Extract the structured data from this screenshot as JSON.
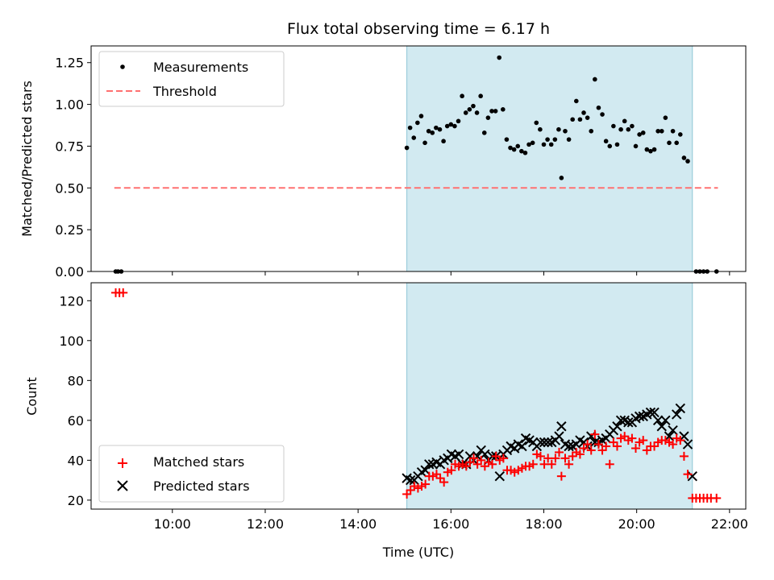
{
  "chart_data": {
    "title": "Flux total observing time = 6.17 h",
    "xlabel": "Time (UTC)",
    "x_ticks": [
      "10:00",
      "12:00",
      "14:00",
      "16:00",
      "18:00",
      "20:00",
      "22:00"
    ],
    "x_range_hours": [
      8.25,
      22.35
    ],
    "highlight_hours": [
      15.05,
      21.2
    ],
    "colors": {
      "highlight": "#add8e6",
      "measurements": "#000000",
      "threshold": "#ff7070",
      "matched": "#ff0000",
      "predicted": "#000000"
    },
    "panels": [
      {
        "type": "scatter",
        "ylabel": "Matched/Predicted stars",
        "ylim": [
          0,
          1.35
        ],
        "y_ticks": [
          "0.00",
          "0.25",
          "0.50",
          "0.75",
          "1.00",
          "1.25"
        ],
        "legend": [
          {
            "label": "Measurements"
          },
          {
            "label": "Threshold"
          }
        ],
        "threshold": {
          "y": 0.5,
          "x_start": 8.75,
          "x_end": 21.75
        },
        "measurements": [
          [
            8.78,
            0
          ],
          [
            8.83,
            0
          ],
          [
            8.9,
            0
          ],
          [
            15.05,
            0.74
          ],
          [
            15.12,
            0.86
          ],
          [
            15.2,
            0.8
          ],
          [
            15.28,
            0.89
          ],
          [
            15.36,
            0.93
          ],
          [
            15.44,
            0.77
          ],
          [
            15.52,
            0.84
          ],
          [
            15.6,
            0.83
          ],
          [
            15.68,
            0.86
          ],
          [
            15.76,
            0.85
          ],
          [
            15.84,
            0.78
          ],
          [
            15.92,
            0.87
          ],
          [
            16.0,
            0.88
          ],
          [
            16.08,
            0.87
          ],
          [
            16.16,
            0.9
          ],
          [
            16.24,
            1.05
          ],
          [
            16.32,
            0.95
          ],
          [
            16.4,
            0.97
          ],
          [
            16.48,
            0.99
          ],
          [
            16.56,
            0.95
          ],
          [
            16.64,
            1.05
          ],
          [
            16.72,
            0.83
          ],
          [
            16.8,
            0.92
          ],
          [
            16.88,
            0.96
          ],
          [
            16.96,
            0.96
          ],
          [
            17.04,
            1.28
          ],
          [
            17.12,
            0.97
          ],
          [
            17.2,
            0.79
          ],
          [
            17.28,
            0.74
          ],
          [
            17.36,
            0.73
          ],
          [
            17.44,
            0.75
          ],
          [
            17.52,
            0.72
          ],
          [
            17.6,
            0.71
          ],
          [
            17.68,
            0.76
          ],
          [
            17.76,
            0.77
          ],
          [
            17.84,
            0.89
          ],
          [
            17.92,
            0.85
          ],
          [
            18.0,
            0.76
          ],
          [
            18.08,
            0.79
          ],
          [
            18.16,
            0.76
          ],
          [
            18.24,
            0.79
          ],
          [
            18.32,
            0.85
          ],
          [
            18.38,
            0.56
          ],
          [
            18.46,
            0.84
          ],
          [
            18.54,
            0.79
          ],
          [
            18.62,
            0.91
          ],
          [
            18.7,
            1.02
          ],
          [
            18.78,
            0.91
          ],
          [
            18.86,
            0.95
          ],
          [
            18.94,
            0.92
          ],
          [
            19.02,
            0.84
          ],
          [
            19.1,
            1.15
          ],
          [
            19.18,
            0.98
          ],
          [
            19.26,
            0.94
          ],
          [
            19.34,
            0.78
          ],
          [
            19.42,
            0.75
          ],
          [
            19.5,
            0.87
          ],
          [
            19.58,
            0.76
          ],
          [
            19.66,
            0.85
          ],
          [
            19.74,
            0.9
          ],
          [
            19.82,
            0.85
          ],
          [
            19.9,
            0.87
          ],
          [
            19.98,
            0.75
          ],
          [
            20.06,
            0.82
          ],
          [
            20.14,
            0.83
          ],
          [
            20.22,
            0.73
          ],
          [
            20.3,
            0.72
          ],
          [
            20.38,
            0.73
          ],
          [
            20.46,
            0.84
          ],
          [
            20.54,
            0.84
          ],
          [
            20.62,
            0.92
          ],
          [
            20.7,
            0.77
          ],
          [
            20.78,
            0.84
          ],
          [
            20.86,
            0.77
          ],
          [
            20.94,
            0.82
          ],
          [
            21.02,
            0.68
          ],
          [
            21.1,
            0.66
          ],
          [
            21.28,
            0
          ],
          [
            21.36,
            0
          ],
          [
            21.44,
            0
          ],
          [
            21.52,
            0
          ],
          [
            21.72,
            0
          ]
        ]
      },
      {
        "type": "scatter",
        "ylabel": "Count",
        "ylim": [
          15.5,
          129
        ],
        "y_ticks": [
          "20",
          "40",
          "60",
          "80",
          "100",
          "120"
        ],
        "legend": [
          {
            "label": "Matched stars"
          },
          {
            "label": "Predicted stars"
          }
        ],
        "matched": [
          [
            8.78,
            124
          ],
          [
            8.86,
            124
          ],
          [
            8.94,
            124
          ],
          [
            15.05,
            23
          ],
          [
            15.13,
            25
          ],
          [
            15.21,
            27
          ],
          [
            15.29,
            26
          ],
          [
            15.37,
            27
          ],
          [
            15.45,
            28
          ],
          [
            15.53,
            32
          ],
          [
            15.61,
            32
          ],
          [
            15.69,
            33
          ],
          [
            15.77,
            31
          ],
          [
            15.85,
            29
          ],
          [
            15.93,
            34
          ],
          [
            16.01,
            35
          ],
          [
            16.09,
            38
          ],
          [
            16.17,
            37
          ],
          [
            16.25,
            38
          ],
          [
            16.33,
            37
          ],
          [
            16.41,
            39
          ],
          [
            16.49,
            41
          ],
          [
            16.57,
            38
          ],
          [
            16.65,
            40
          ],
          [
            16.73,
            37
          ],
          [
            16.81,
            39
          ],
          [
            16.89,
            38
          ],
          [
            16.97,
            42
          ],
          [
            17.05,
            40
          ],
          [
            17.13,
            41
          ],
          [
            17.21,
            35
          ],
          [
            17.29,
            35
          ],
          [
            17.37,
            34
          ],
          [
            17.45,
            35
          ],
          [
            17.53,
            36
          ],
          [
            17.61,
            37
          ],
          [
            17.69,
            37
          ],
          [
            17.77,
            38
          ],
          [
            17.85,
            43
          ],
          [
            17.93,
            42
          ],
          [
            18.01,
            38
          ],
          [
            18.09,
            41
          ],
          [
            18.17,
            38
          ],
          [
            18.25,
            41
          ],
          [
            18.33,
            44
          ],
          [
            18.38,
            32
          ],
          [
            18.46,
            41
          ],
          [
            18.54,
            38
          ],
          [
            18.62,
            42
          ],
          [
            18.7,
            44
          ],
          [
            18.78,
            43
          ],
          [
            18.86,
            46
          ],
          [
            18.94,
            48
          ],
          [
            19.02,
            45
          ],
          [
            19.1,
            53
          ],
          [
            19.18,
            48
          ],
          [
            19.26,
            45
          ],
          [
            19.34,
            47
          ],
          [
            19.42,
            38
          ],
          [
            19.5,
            49
          ],
          [
            19.58,
            47
          ],
          [
            19.66,
            51
          ],
          [
            19.74,
            52
          ],
          [
            19.82,
            50
          ],
          [
            19.9,
            51
          ],
          [
            19.98,
            46
          ],
          [
            20.06,
            49
          ],
          [
            20.14,
            50
          ],
          [
            20.22,
            45
          ],
          [
            20.3,
            47
          ],
          [
            20.38,
            47
          ],
          [
            20.46,
            49
          ],
          [
            20.54,
            50
          ],
          [
            20.62,
            50
          ],
          [
            20.7,
            49
          ],
          [
            20.78,
            48
          ],
          [
            20.86,
            51
          ],
          [
            20.94,
            50
          ],
          [
            21.02,
            42
          ],
          [
            21.1,
            33
          ],
          [
            21.2,
            21
          ],
          [
            21.28,
            21
          ],
          [
            21.36,
            21
          ],
          [
            21.44,
            21
          ],
          [
            21.52,
            21
          ],
          [
            21.6,
            21
          ],
          [
            21.72,
            21
          ]
        ],
        "predicted": [
          [
            15.05,
            31
          ],
          [
            15.13,
            30
          ],
          [
            15.21,
            30
          ],
          [
            15.29,
            32
          ],
          [
            15.37,
            34
          ],
          [
            15.45,
            35
          ],
          [
            15.53,
            38
          ],
          [
            15.61,
            38
          ],
          [
            15.69,
            39
          ],
          [
            15.77,
            38
          ],
          [
            15.85,
            40
          ],
          [
            15.93,
            41
          ],
          [
            16.01,
            43
          ],
          [
            16.09,
            42
          ],
          [
            16.17,
            43
          ],
          [
            16.25,
            38
          ],
          [
            16.33,
            38
          ],
          [
            16.41,
            42
          ],
          [
            16.49,
            40
          ],
          [
            16.57,
            42
          ],
          [
            16.65,
            45
          ],
          [
            16.73,
            43
          ],
          [
            16.81,
            40
          ],
          [
            16.89,
            42
          ],
          [
            16.97,
            42
          ],
          [
            17.05,
            32
          ],
          [
            17.13,
            43
          ],
          [
            17.21,
            45
          ],
          [
            17.29,
            47
          ],
          [
            17.37,
            46
          ],
          [
            17.45,
            48
          ],
          [
            17.53,
            47
          ],
          [
            17.61,
            51
          ],
          [
            17.69,
            50
          ],
          [
            17.77,
            49
          ],
          [
            17.85,
            47
          ],
          [
            17.93,
            49
          ],
          [
            18.01,
            49
          ],
          [
            18.09,
            49
          ],
          [
            18.17,
            49
          ],
          [
            18.25,
            50
          ],
          [
            18.33,
            52
          ],
          [
            18.38,
            57
          ],
          [
            18.46,
            48
          ],
          [
            18.54,
            47
          ],
          [
            18.62,
            47
          ],
          [
            18.7,
            48
          ],
          [
            18.78,
            50
          ],
          [
            18.86,
            49
          ],
          [
            18.94,
            47
          ],
          [
            19.02,
            52
          ],
          [
            19.1,
            49
          ],
          [
            19.18,
            49
          ],
          [
            19.26,
            50
          ],
          [
            19.34,
            51
          ],
          [
            19.42,
            53
          ],
          [
            19.5,
            55
          ],
          [
            19.58,
            57
          ],
          [
            19.66,
            60
          ],
          [
            19.74,
            60
          ],
          [
            19.82,
            59
          ],
          [
            19.9,
            59
          ],
          [
            19.98,
            61
          ],
          [
            20.06,
            62
          ],
          [
            20.14,
            62
          ],
          [
            20.22,
            63
          ],
          [
            20.3,
            64
          ],
          [
            20.38,
            64
          ],
          [
            20.46,
            60
          ],
          [
            20.54,
            57
          ],
          [
            20.62,
            60
          ],
          [
            20.7,
            52
          ],
          [
            20.78,
            55
          ],
          [
            20.86,
            63
          ],
          [
            20.94,
            66
          ],
          [
            21.02,
            52
          ],
          [
            21.1,
            48
          ],
          [
            21.2,
            32
          ]
        ]
      }
    ]
  }
}
